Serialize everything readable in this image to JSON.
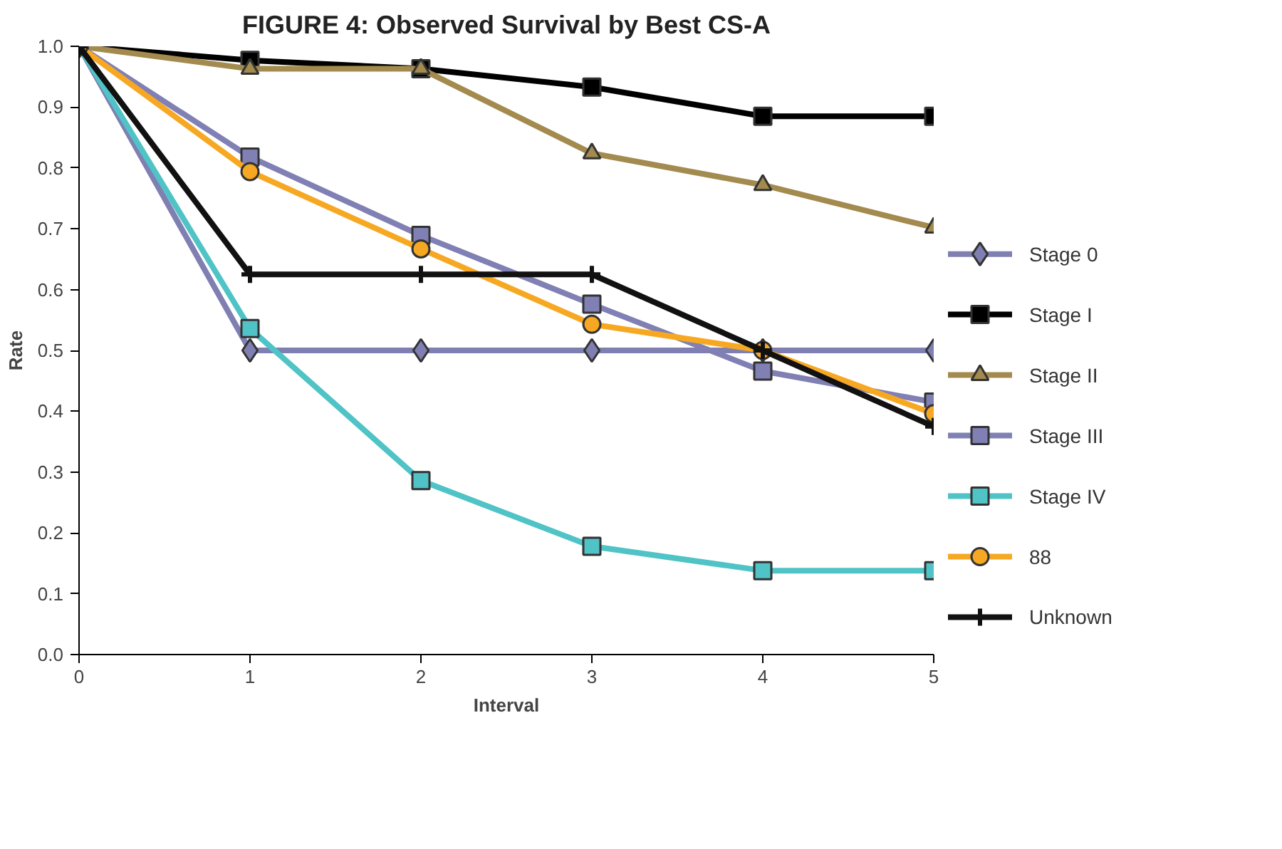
{
  "chart_data": {
    "type": "line",
    "title": "FIGURE 4: Observed Survival by Best CS-A",
    "xlabel": "Interval",
    "ylabel": "Rate",
    "x": [
      0,
      1,
      2,
      3,
      4,
      5
    ],
    "xlim": [
      0,
      5
    ],
    "xticks": [
      0,
      1,
      2,
      3,
      4,
      5
    ],
    "ylim": [
      0,
      1.0
    ],
    "yticks": [
      {
        "value": 0,
        "label": "0.0"
      },
      0.1,
      0.2,
      0.3,
      0.4,
      0.5,
      0.6,
      0.7,
      0.8,
      0.9,
      {
        "value": 1.0,
        "label": "1.0"
      }
    ],
    "grid": false,
    "legend": "right",
    "line_style": "solid",
    "series": [
      {
        "name": "Stage 0",
        "color": "#7f7fb2",
        "marker": "diamond",
        "values": [
          1.0,
          0.5,
          0.5,
          0.5,
          0.5,
          0.5
        ]
      },
      {
        "name": "Stage I",
        "color": "#000000",
        "marker": "square",
        "values": [
          1.0,
          0.977,
          0.963,
          0.933,
          0.885,
          0.885
        ]
      },
      {
        "name": "Stage II",
        "color": "#a38a4e",
        "marker": "triangle",
        "values": [
          1.0,
          0.963,
          0.963,
          0.824,
          0.772,
          0.702
        ]
      },
      {
        "name": "Stage III",
        "color": "#8080b4",
        "marker": "square",
        "values": [
          1.0,
          0.818,
          0.689,
          0.576,
          0.466,
          0.415
        ]
      },
      {
        "name": "Stage IV",
        "color": "#4fc3c6",
        "marker": "square",
        "values": [
          1.0,
          0.536,
          0.286,
          0.178,
          0.138,
          0.138
        ]
      },
      {
        "name": "88",
        "color": "#f7a823",
        "marker": "circle",
        "values": [
          1.0,
          0.794,
          0.667,
          0.543,
          0.5,
          0.396
        ]
      },
      {
        "name": "Unknown",
        "color": "#111111",
        "marker": "cross",
        "values": [
          1.0,
          0.625,
          0.625,
          0.625,
          0.5,
          0.375
        ]
      }
    ]
  }
}
